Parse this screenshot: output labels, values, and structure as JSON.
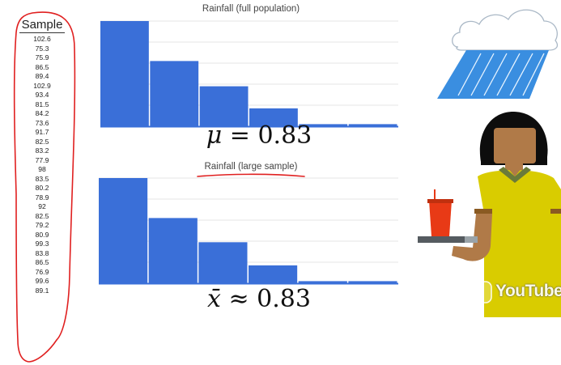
{
  "sample": {
    "header": "Sample",
    "values": [
      "102.6",
      "75.3",
      "75.9",
      "86.5",
      "89.4",
      "102.9",
      "93.4",
      "81.5",
      "84.2",
      "73.6",
      "91.7",
      "82.5",
      "83.2",
      "77.9",
      "98",
      "83.5",
      "80.2",
      "78.9",
      "92",
      "82.5",
      "79.2",
      "80.9",
      "99.3",
      "83.8",
      "86.5",
      "76.9",
      "99.6",
      "89.1"
    ]
  },
  "chart_data": [
    {
      "type": "bar",
      "title": "Rainfall (full population)",
      "values": [
        100,
        62,
        38,
        17,
        2,
        2
      ],
      "ylim": [
        0,
        100
      ],
      "grid": true,
      "color": "#3a6fd8"
    },
    {
      "type": "bar",
      "title": "Rainfall (large sample)",
      "values": [
        100,
        62,
        39,
        17,
        2,
        2
      ],
      "ylim": [
        0,
        100
      ],
      "grid": true,
      "color": "#3a6fd8"
    }
  ],
  "stats": {
    "population_symbol": "μ",
    "population_relation": "=",
    "population_value": "0.83",
    "sample_symbol": "x̄",
    "sample_relation": "≈",
    "sample_value": "0.83"
  },
  "watermark": {
    "label": "YouTube",
    "icon": "play-icon"
  },
  "colors": {
    "bar": "#3a6fd8",
    "annotation": "#e02020",
    "rain": "#3a8ee0",
    "shirt": "#d9cc00",
    "skin": "#b07a48",
    "hair": "#0d0d0d",
    "cup": "#e83a16"
  }
}
